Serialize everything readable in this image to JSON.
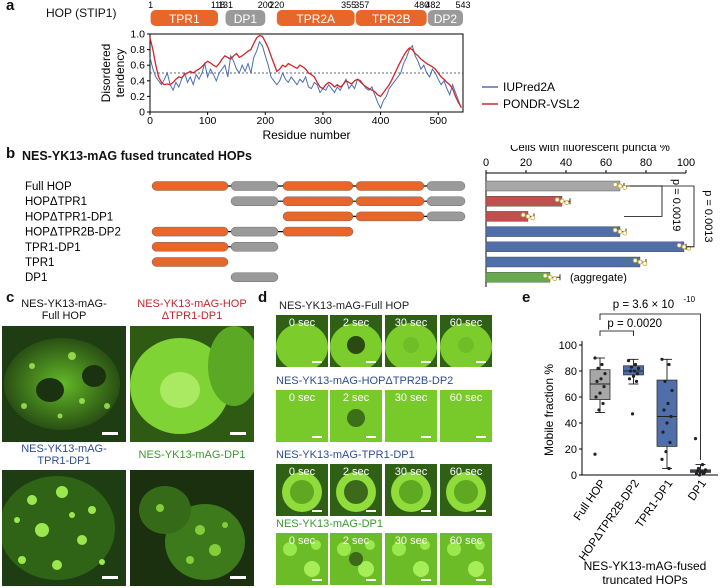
{
  "panel_letters": {
    "a": "a",
    "b": "b",
    "c": "c",
    "d": "d",
    "e": "e"
  },
  "panel_a": {
    "protein_label": "HOP (STIP1)",
    "domains": [
      {
        "name": "TPR1",
        "start": 1,
        "end": 118,
        "color": "#e8662a"
      },
      {
        "name": "DP1",
        "start": 131,
        "end": 200,
        "color": "#9a9a9a"
      },
      {
        "name": "TPR2A",
        "start": 220,
        "end": 355,
        "color": "#e8662a"
      },
      {
        "name": "TPR2B",
        "start": 357,
        "end": 480,
        "color": "#e8662a"
      },
      {
        "name": "DP2",
        "start": 482,
        "end": 543,
        "color": "#9a9a9a"
      }
    ],
    "boundary_labels": [
      "1",
      "118",
      "131",
      "200",
      "220",
      "355",
      "357",
      "480",
      "482",
      "543"
    ],
    "chart_data": {
      "type": "line",
      "ylabel_line1": "Disordered",
      "ylabel_line2": "tendency",
      "xlabel": "Residue number",
      "xlim": [
        0,
        543
      ],
      "ylim": [
        0,
        1
      ],
      "xticks": [
        "0",
        "100",
        "200",
        "300",
        "400",
        "500"
      ],
      "yticks": [
        "0",
        "0.2",
        "0.4",
        "0.6",
        "0.8",
        "1.0"
      ],
      "threshold": 0.5,
      "series": [
        {
          "name": "IUPred2A",
          "color": "#4a6fb0",
          "x": [
            0,
            5,
            10,
            15,
            20,
            25,
            30,
            35,
            40,
            45,
            50,
            55,
            60,
            65,
            70,
            75,
            80,
            85,
            90,
            95,
            100,
            105,
            110,
            115,
            120,
            125,
            130,
            135,
            140,
            145,
            150,
            155,
            160,
            165,
            170,
            175,
            180,
            185,
            190,
            195,
            200,
            205,
            210,
            215,
            220,
            225,
            230,
            235,
            240,
            245,
            250,
            255,
            260,
            265,
            270,
            275,
            280,
            285,
            290,
            295,
            300,
            305,
            310,
            315,
            320,
            325,
            330,
            335,
            340,
            345,
            350,
            355,
            360,
            365,
            370,
            375,
            380,
            385,
            390,
            395,
            400,
            405,
            410,
            415,
            420,
            425,
            430,
            435,
            440,
            445,
            450,
            455,
            460,
            465,
            470,
            475,
            480,
            485,
            490,
            495,
            500,
            505,
            510,
            515,
            520,
            525,
            530,
            535,
            540
          ],
          "y": [
            0.7,
            0.55,
            0.45,
            0.4,
            0.35,
            0.42,
            0.5,
            0.35,
            0.28,
            0.38,
            0.32,
            0.42,
            0.5,
            0.38,
            0.45,
            0.35,
            0.48,
            0.42,
            0.5,
            0.62,
            0.45,
            0.55,
            0.48,
            0.4,
            0.5,
            0.55,
            0.6,
            0.45,
            0.72,
            0.65,
            0.55,
            0.5,
            0.6,
            0.52,
            0.62,
            0.5,
            0.7,
            0.78,
            0.9,
            0.85,
            0.72,
            0.6,
            0.45,
            0.4,
            0.35,
            0.4,
            0.5,
            0.42,
            0.38,
            0.45,
            0.4,
            0.35,
            0.42,
            0.38,
            0.45,
            0.32,
            0.3,
            0.38,
            0.35,
            0.25,
            0.3,
            0.28,
            0.35,
            0.3,
            0.25,
            0.32,
            0.28,
            0.35,
            0.42,
            0.3,
            0.35,
            0.3,
            0.42,
            0.38,
            0.35,
            0.3,
            0.28,
            0.32,
            0.22,
            0.12,
            0.05,
            0.15,
            0.2,
            0.3,
            0.35,
            0.4,
            0.45,
            0.5,
            0.62,
            0.7,
            0.8,
            0.85,
            0.72,
            0.65,
            0.55,
            0.6,
            0.5,
            0.45,
            0.55,
            0.5,
            0.42,
            0.35,
            0.4,
            0.3,
            0.22,
            0.35,
            0.25,
            0.15,
            0.05
          ]
        },
        {
          "name": "PONDR-VSL2",
          "color": "#d0262b",
          "x": [
            0,
            5,
            10,
            15,
            20,
            25,
            30,
            35,
            40,
            45,
            50,
            55,
            60,
            65,
            70,
            75,
            80,
            85,
            90,
            95,
            100,
            105,
            110,
            115,
            120,
            125,
            130,
            135,
            140,
            145,
            150,
            155,
            160,
            165,
            170,
            175,
            180,
            185,
            190,
            195,
            200,
            205,
            210,
            215,
            220,
            225,
            230,
            235,
            240,
            245,
            250,
            255,
            260,
            265,
            270,
            275,
            280,
            285,
            290,
            295,
            300,
            305,
            310,
            315,
            320,
            325,
            330,
            335,
            340,
            345,
            350,
            355,
            360,
            365,
            370,
            375,
            380,
            385,
            390,
            395,
            400,
            405,
            410,
            415,
            420,
            425,
            430,
            435,
            440,
            445,
            450,
            455,
            460,
            465,
            470,
            475,
            480,
            485,
            490,
            495,
            500,
            505,
            510,
            515,
            520,
            525,
            530,
            535,
            540
          ],
          "y": [
            0.95,
            0.8,
            0.6,
            0.45,
            0.38,
            0.35,
            0.36,
            0.35,
            0.38,
            0.42,
            0.45,
            0.44,
            0.48,
            0.5,
            0.52,
            0.5,
            0.53,
            0.55,
            0.58,
            0.62,
            0.65,
            0.63,
            0.6,
            0.58,
            0.62,
            0.68,
            0.72,
            0.7,
            0.68,
            0.72,
            0.75,
            0.7,
            0.72,
            0.75,
            0.78,
            0.8,
            0.88,
            0.95,
            0.98,
            0.97,
            0.9,
            0.82,
            0.72,
            0.62,
            0.52,
            0.55,
            0.6,
            0.58,
            0.62,
            0.6,
            0.58,
            0.56,
            0.6,
            0.58,
            0.55,
            0.5,
            0.48,
            0.45,
            0.38,
            0.32,
            0.3,
            0.35,
            0.38,
            0.36,
            0.32,
            0.35,
            0.32,
            0.35,
            0.4,
            0.38,
            0.36,
            0.4,
            0.42,
            0.4,
            0.35,
            0.32,
            0.3,
            0.28,
            0.26,
            0.22,
            0.2,
            0.25,
            0.3,
            0.35,
            0.42,
            0.5,
            0.58,
            0.65,
            0.72,
            0.78,
            0.82,
            0.8,
            0.75,
            0.72,
            0.68,
            0.65,
            0.62,
            0.6,
            0.58,
            0.55,
            0.5,
            0.45,
            0.42,
            0.38,
            0.35,
            0.3,
            0.2,
            0.12,
            0.06
          ]
        }
      ]
    }
  },
  "panel_b": {
    "title": "NES-YK13-mAG fused truncated HOPs",
    "constructs": [
      {
        "name": "Full HOP",
        "segments": [
          "TPR1",
          "DP1",
          "TPR2A",
          "TPR2B",
          "DP2"
        ]
      },
      {
        "name": "HOPΔTPR1",
        "segments": [
          "DP1",
          "TPR2A",
          "TPR2B",
          "DP2"
        ]
      },
      {
        "name": "HOPΔTPR1-DP1",
        "segments": [
          "TPR2A",
          "TPR2B",
          "DP2"
        ]
      },
      {
        "name": "HOPΔTPR2B-DP2",
        "segments": [
          "TPR1",
          "DP1",
          "TPR2A"
        ]
      },
      {
        "name": "TPR1-DP1",
        "segments": [
          "TPR1",
          "DP1"
        ]
      },
      {
        "name": "TPR1",
        "segments": [
          "TPR1"
        ]
      },
      {
        "name": "DP1",
        "segments": [
          "DP1"
        ]
      }
    ],
    "chart_data": {
      "type": "bar",
      "orientation": "horizontal",
      "xlabel": "Cells with fluorescent puncta %",
      "xlim": [
        0,
        100
      ],
      "xticks": [
        "0",
        "20",
        "40",
        "60",
        "80",
        "100"
      ],
      "categories": [
        "Full HOP",
        "HOPΔTPR1",
        "HOPΔTPR1-DP1",
        "HOPΔTPR2B-DP2",
        "TPR1-DP1",
        "TPR1",
        "DP1"
      ],
      "values": [
        67,
        38,
        21,
        67,
        99,
        77,
        32
      ],
      "errors": [
        2,
        4,
        3,
        3,
        1,
        3,
        5
      ],
      "colors": [
        "#a7a7a7",
        "#c0504d",
        "#c0504d",
        "#4f6eaa",
        "#4f6eaa",
        "#4f6eaa",
        "#6aa84f"
      ],
      "annotations": [
        {
          "text": "p = 0.0019"
        },
        {
          "text": "p = 0.0013"
        },
        {
          "text": "(aggregate)"
        }
      ]
    }
  },
  "panel_c": {
    "images": [
      {
        "label_line1": "NES-YK13-mAG-",
        "label_line2": "Full HOP",
        "color": "#222222"
      },
      {
        "label_line1": "NES-YK13-mAG-HOP",
        "label_line2": "ΔTPR1-DP1",
        "color": "#c0272d"
      },
      {
        "label_line1": "NES-YK13-mAG-",
        "label_line2": "TPR1-DP1",
        "color": "#2f4d94"
      },
      {
        "label_line1": "NES-YK13-mAG-DP1",
        "label_line2": "",
        "color": "#3a9a2e"
      }
    ]
  },
  "panel_d": {
    "rows": [
      {
        "label": "NES-YK13-mAG-Full HOP",
        "color": "#222222"
      },
      {
        "label": "NES-YK13-mAG-HOPΔTPR2B-DP2",
        "color": "#2f4d94"
      },
      {
        "label": "NES-YK13-mAG-TPR1-DP1",
        "color": "#2f4d94"
      },
      {
        "label": "NES-YK13-mAG-DP1",
        "color": "#3a9a2e"
      }
    ],
    "time_labels": [
      "0 sec",
      "2 sec",
      "30 sec",
      "60 sec"
    ]
  },
  "panel_e": {
    "chart_data": {
      "type": "box",
      "ylabel": "Mobile fraction %",
      "xlabel_line1": "NES-YK13-mAG-fused",
      "xlabel_line2": "truncated HOPs",
      "ylim": [
        0,
        100
      ],
      "yticks": [
        "0",
        "20",
        "40",
        "60",
        "80",
        "100"
      ],
      "categories": [
        "Full HOP",
        "HOPΔTPR2B-DP2",
        "TPR1-DP1",
        "DP1"
      ],
      "colors": [
        "#a7a7a7",
        "#4f6eaa",
        "#4f6eaa",
        "#4f6eaa"
      ],
      "boxes": [
        {
          "min": 48,
          "q1": 58,
          "median": 70,
          "q3": 81,
          "max": 90
        },
        {
          "min": 70,
          "q1": 77,
          "median": 80,
          "q3": 84,
          "max": 89
        },
        {
          "min": 5,
          "q1": 22,
          "median": 45,
          "q3": 73,
          "max": 89
        },
        {
          "min": 0,
          "q1": 2,
          "median": 3,
          "q3": 4,
          "max": 8
        }
      ],
      "points": [
        [
          90,
          85,
          82,
          78,
          74,
          72,
          68,
          63,
          60,
          55,
          50,
          16
        ],
        [
          88,
          85,
          83,
          82,
          80,
          80,
          78,
          76,
          74,
          72,
          47
        ],
        [
          89,
          85,
          72,
          65,
          55,
          50,
          45,
          40,
          33,
          25,
          18,
          12,
          5
        ],
        [
          28,
          8,
          5,
          4,
          3,
          3,
          2,
          2,
          1,
          1,
          0
        ]
      ],
      "annotations": [
        {
          "text": "p = 3.6 × 10"
        },
        {
          "text": "-10"
        },
        {
          "text": "p = 0.0020"
        }
      ]
    }
  }
}
